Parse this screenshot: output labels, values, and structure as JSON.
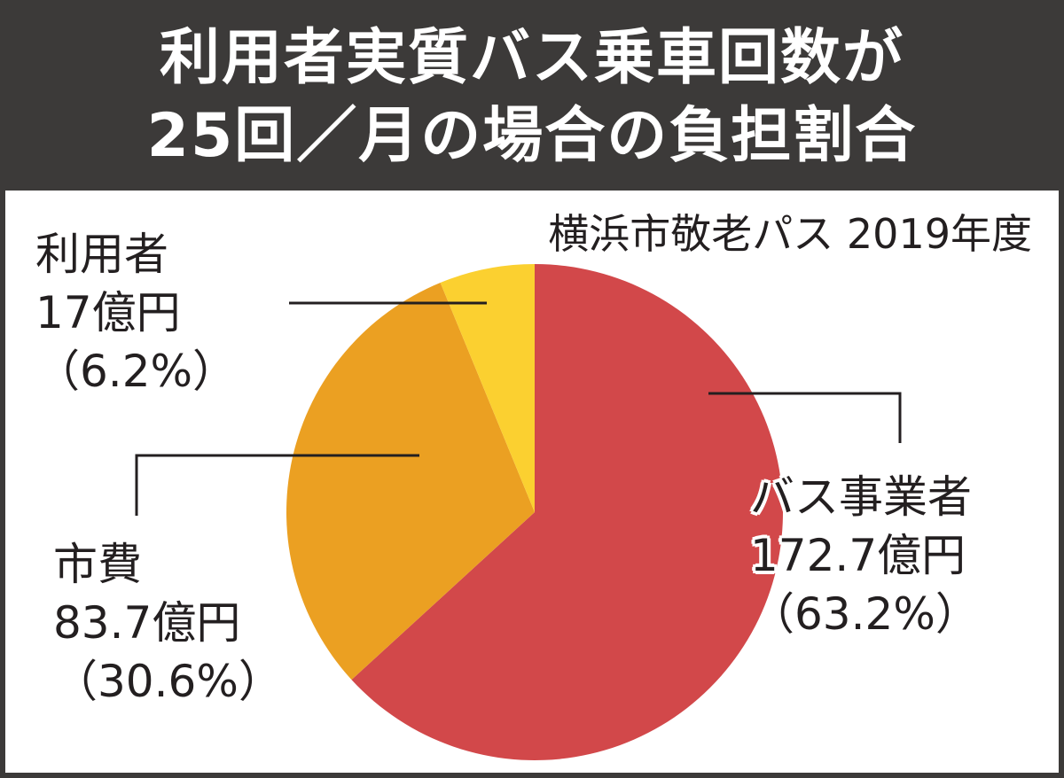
{
  "header": {
    "title_line1": "利用者実質バス乗車回数が",
    "title_line2": "25回／月の場合の負担割合"
  },
  "subtitle": "横浜市敬老パス 2019年度",
  "colors": {
    "header_bg": "#3c3a39",
    "bus_operator": "#d2484a",
    "city": "#eba022",
    "user": "#fbd030"
  },
  "chart_data": {
    "type": "pie",
    "title": "利用者実質バス乗車回数が25回／月の場合の負担割合",
    "subtitle": "横浜市敬老パス 2019年度",
    "slices": [
      {
        "name": "バス事業者",
        "value": 172.7,
        "value_label": "172.7億円",
        "percent": 63.2,
        "percent_label": "（63.2%）",
        "color": "#d2484a"
      },
      {
        "name": "市費",
        "value": 83.7,
        "value_label": "83.7億円",
        "percent": 30.6,
        "percent_label": "（30.6%）",
        "color": "#eba022"
      },
      {
        "name": "利用者",
        "value": 17,
        "value_label": "17億円",
        "percent": 6.2,
        "percent_label": "（6.2%）",
        "color": "#fbd030"
      }
    ],
    "start_angle": "12 o'clock",
    "direction": "clockwise"
  }
}
